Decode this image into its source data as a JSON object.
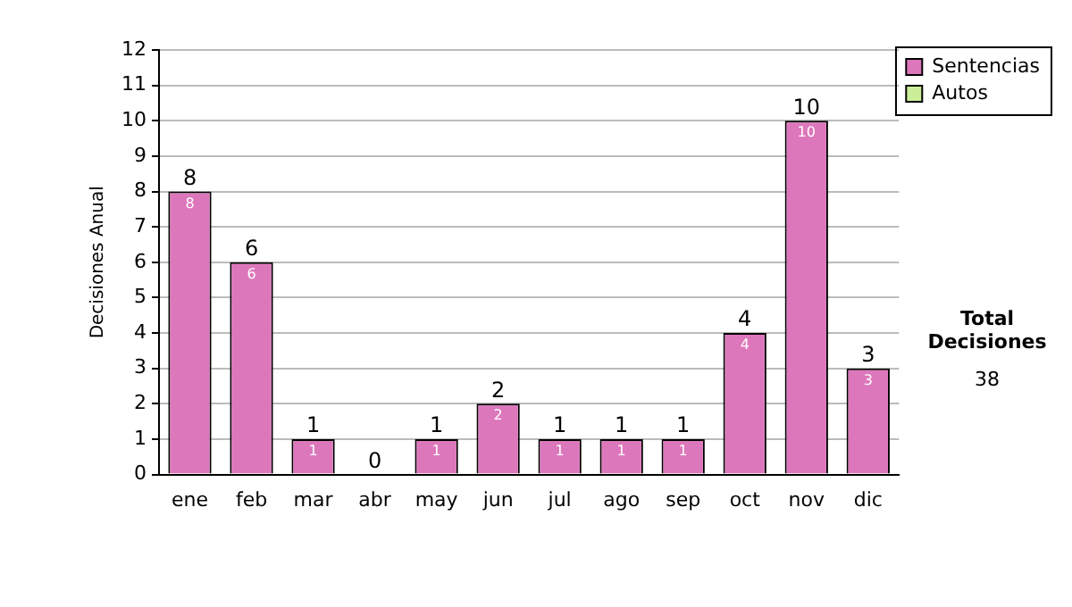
{
  "chart_data": {
    "type": "bar",
    "stacked": true,
    "ylabel": "Decisiones Anual",
    "categories": [
      "ene",
      "feb",
      "mar",
      "abr",
      "may",
      "jun",
      "jul",
      "ago",
      "sep",
      "oct",
      "nov",
      "dic"
    ],
    "series": [
      {
        "name": "Sentencias",
        "color": "#dd77bb",
        "values": [
          8,
          6,
          1,
          0,
          1,
          2,
          1,
          1,
          1,
          4,
          10,
          3
        ],
        "value_labels": [
          "8",
          "6",
          "1",
          null,
          "1",
          "2",
          "1",
          "1",
          "1",
          "4",
          "10",
          "3"
        ]
      },
      {
        "name": "Autos",
        "color": "#ccee99",
        "values": [
          0,
          0,
          0,
          0,
          0,
          0,
          0,
          0,
          0,
          0,
          0,
          0
        ]
      }
    ],
    "totals": [
      "8",
      "6",
      "1",
      "0",
      "1",
      "2",
      "1",
      "1",
      "1",
      "4",
      "10",
      "3"
    ],
    "ylim": [
      0,
      12
    ],
    "yticks": [
      0,
      1,
      2,
      3,
      4,
      5,
      6,
      7,
      8,
      9,
      10,
      11,
      12
    ],
    "grid": "y",
    "legend": "right",
    "annotations": [
      "Total Decisiones",
      "38"
    ]
  }
}
